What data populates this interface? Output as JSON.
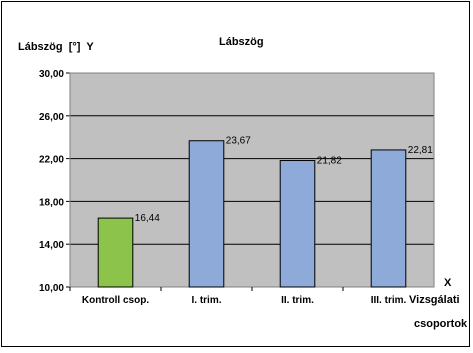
{
  "chart_data": {
    "type": "bar",
    "title": "Lábszög",
    "ylabel": "Lábszög  [°]  Y",
    "xlabel": "X",
    "xlabel_extra": [
      "Vizsgálati",
      "csoportok"
    ],
    "categories": [
      "Kontroll csop.",
      "I. trim.",
      "II. trim.",
      "III. trim."
    ],
    "values": [
      16.44,
      23.67,
      21.82,
      22.81
    ],
    "data_labels": [
      "16,44",
      "23,67",
      "21,82",
      "22,81"
    ],
    "ylim": [
      10,
      30
    ],
    "yticks": [
      10,
      14,
      18,
      22,
      26,
      30
    ],
    "ytick_labels": [
      "10,00",
      "14,00",
      "18,00",
      "22,00",
      "26,00",
      "30,00"
    ],
    "grid": true,
    "plot_background": "#c0c0c0",
    "bar_colors": [
      "#8cc34a",
      "#8eaad8",
      "#8eaad8",
      "#8eaad8"
    ]
  }
}
